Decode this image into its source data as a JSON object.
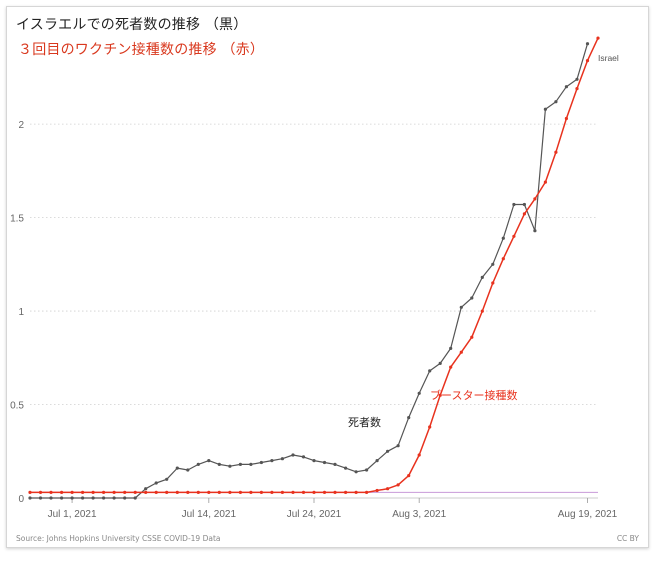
{
  "title_black": "イスラエルでの死者数の推移 （黒）",
  "title_red": "３回目のワクチン接種数の推移 （赤）",
  "source": "Source: Johns Hopkins University CSSE COVID-19 Data",
  "license": "CC BY",
  "chart_data": {
    "type": "line",
    "x_ticks": [
      "Jul 1, 2021",
      "Jul 14, 2021",
      "Jul 24, 2021",
      "Aug 3, 2021",
      "Aug 19, 2021"
    ],
    "y_ticks": [
      "0",
      "0.5",
      "1",
      "1.5",
      "2"
    ],
    "ylim": [
      0,
      2.45
    ],
    "xlim": [
      "2021-06-27",
      "2021-08-20"
    ],
    "grid": true,
    "colors": {
      "deaths": "#555555",
      "boosters": "#e8321e",
      "baseline": "#c89ad8"
    },
    "series": [
      {
        "name": "死者数",
        "key": "deaths",
        "points": [
          [
            "2021-06-27",
            0
          ],
          [
            "2021-06-28",
            0
          ],
          [
            "2021-06-29",
            0
          ],
          [
            "2021-06-30",
            0
          ],
          [
            "2021-07-01",
            0
          ],
          [
            "2021-07-02",
            0
          ],
          [
            "2021-07-03",
            0
          ],
          [
            "2021-07-04",
            0
          ],
          [
            "2021-07-05",
            0
          ],
          [
            "2021-07-06",
            0
          ],
          [
            "2021-07-07",
            0
          ],
          [
            "2021-07-08",
            0.05
          ],
          [
            "2021-07-09",
            0.08
          ],
          [
            "2021-07-10",
            0.1
          ],
          [
            "2021-07-11",
            0.16
          ],
          [
            "2021-07-12",
            0.15
          ],
          [
            "2021-07-13",
            0.18
          ],
          [
            "2021-07-14",
            0.2
          ],
          [
            "2021-07-15",
            0.18
          ],
          [
            "2021-07-16",
            0.17
          ],
          [
            "2021-07-17",
            0.18
          ],
          [
            "2021-07-18",
            0.18
          ],
          [
            "2021-07-19",
            0.19
          ],
          [
            "2021-07-20",
            0.2
          ],
          [
            "2021-07-21",
            0.21
          ],
          [
            "2021-07-22",
            0.23
          ],
          [
            "2021-07-23",
            0.22
          ],
          [
            "2021-07-24",
            0.2
          ],
          [
            "2021-07-25",
            0.19
          ],
          [
            "2021-07-26",
            0.18
          ],
          [
            "2021-07-27",
            0.16
          ],
          [
            "2021-07-28",
            0.14
          ],
          [
            "2021-07-29",
            0.15
          ],
          [
            "2021-07-30",
            0.2
          ],
          [
            "2021-07-31",
            0.25
          ],
          [
            "2021-08-01",
            0.28
          ],
          [
            "2021-08-02",
            0.43
          ],
          [
            "2021-08-03",
            0.56
          ],
          [
            "2021-08-04",
            0.68
          ],
          [
            "2021-08-05",
            0.72
          ],
          [
            "2021-08-06",
            0.8
          ],
          [
            "2021-08-07",
            1.02
          ],
          [
            "2021-08-08",
            1.07
          ],
          [
            "2021-08-09",
            1.18
          ],
          [
            "2021-08-10",
            1.25
          ],
          [
            "2021-08-11",
            1.39
          ],
          [
            "2021-08-12",
            1.57
          ],
          [
            "2021-08-13",
            1.57
          ],
          [
            "2021-08-14",
            1.43
          ],
          [
            "2021-08-15",
            2.08
          ],
          [
            "2021-08-16",
            2.12
          ],
          [
            "2021-08-17",
            2.2
          ],
          [
            "2021-08-18",
            2.24
          ],
          [
            "2021-08-19",
            2.43
          ]
        ]
      },
      {
        "name": "ブースター接種数",
        "key": "boosters",
        "points": [
          [
            "2021-06-27",
            0.03
          ],
          [
            "2021-06-28",
            0.03
          ],
          [
            "2021-06-29",
            0.03
          ],
          [
            "2021-06-30",
            0.03
          ],
          [
            "2021-07-01",
            0.03
          ],
          [
            "2021-07-02",
            0.03
          ],
          [
            "2021-07-03",
            0.03
          ],
          [
            "2021-07-04",
            0.03
          ],
          [
            "2021-07-05",
            0.03
          ],
          [
            "2021-07-06",
            0.03
          ],
          [
            "2021-07-07",
            0.03
          ],
          [
            "2021-07-08",
            0.03
          ],
          [
            "2021-07-09",
            0.03
          ],
          [
            "2021-07-10",
            0.03
          ],
          [
            "2021-07-11",
            0.03
          ],
          [
            "2021-07-12",
            0.03
          ],
          [
            "2021-07-13",
            0.03
          ],
          [
            "2021-07-14",
            0.03
          ],
          [
            "2021-07-15",
            0.03
          ],
          [
            "2021-07-16",
            0.03
          ],
          [
            "2021-07-17",
            0.03
          ],
          [
            "2021-07-18",
            0.03
          ],
          [
            "2021-07-19",
            0.03
          ],
          [
            "2021-07-20",
            0.03
          ],
          [
            "2021-07-21",
            0.03
          ],
          [
            "2021-07-22",
            0.03
          ],
          [
            "2021-07-23",
            0.03
          ],
          [
            "2021-07-24",
            0.03
          ],
          [
            "2021-07-25",
            0.03
          ],
          [
            "2021-07-26",
            0.03
          ],
          [
            "2021-07-27",
            0.03
          ],
          [
            "2021-07-28",
            0.03
          ],
          [
            "2021-07-29",
            0.03
          ],
          [
            "2021-07-30",
            0.04
          ],
          [
            "2021-07-31",
            0.05
          ],
          [
            "2021-08-01",
            0.07
          ],
          [
            "2021-08-02",
            0.12
          ],
          [
            "2021-08-03",
            0.23
          ],
          [
            "2021-08-04",
            0.38
          ],
          [
            "2021-08-05",
            0.55
          ],
          [
            "2021-08-06",
            0.7
          ],
          [
            "2021-08-07",
            0.78
          ],
          [
            "2021-08-08",
            0.86
          ],
          [
            "2021-08-09",
            1.0
          ],
          [
            "2021-08-10",
            1.15
          ],
          [
            "2021-08-11",
            1.28
          ],
          [
            "2021-08-12",
            1.4
          ],
          [
            "2021-08-13",
            1.52
          ],
          [
            "2021-08-14",
            1.6
          ],
          [
            "2021-08-15",
            1.69
          ],
          [
            "2021-08-16",
            1.85
          ],
          [
            "2021-08-17",
            2.03
          ],
          [
            "2021-08-18",
            2.19
          ],
          [
            "2021-08-19",
            2.34
          ],
          [
            "2021-08-20",
            2.46
          ]
        ]
      }
    ],
    "annotations": [
      {
        "text": "死者数",
        "series": "deaths"
      },
      {
        "text": "ブースター接種数",
        "series": "boosters"
      },
      {
        "text": "Israel",
        "series": "deaths"
      }
    ]
  }
}
